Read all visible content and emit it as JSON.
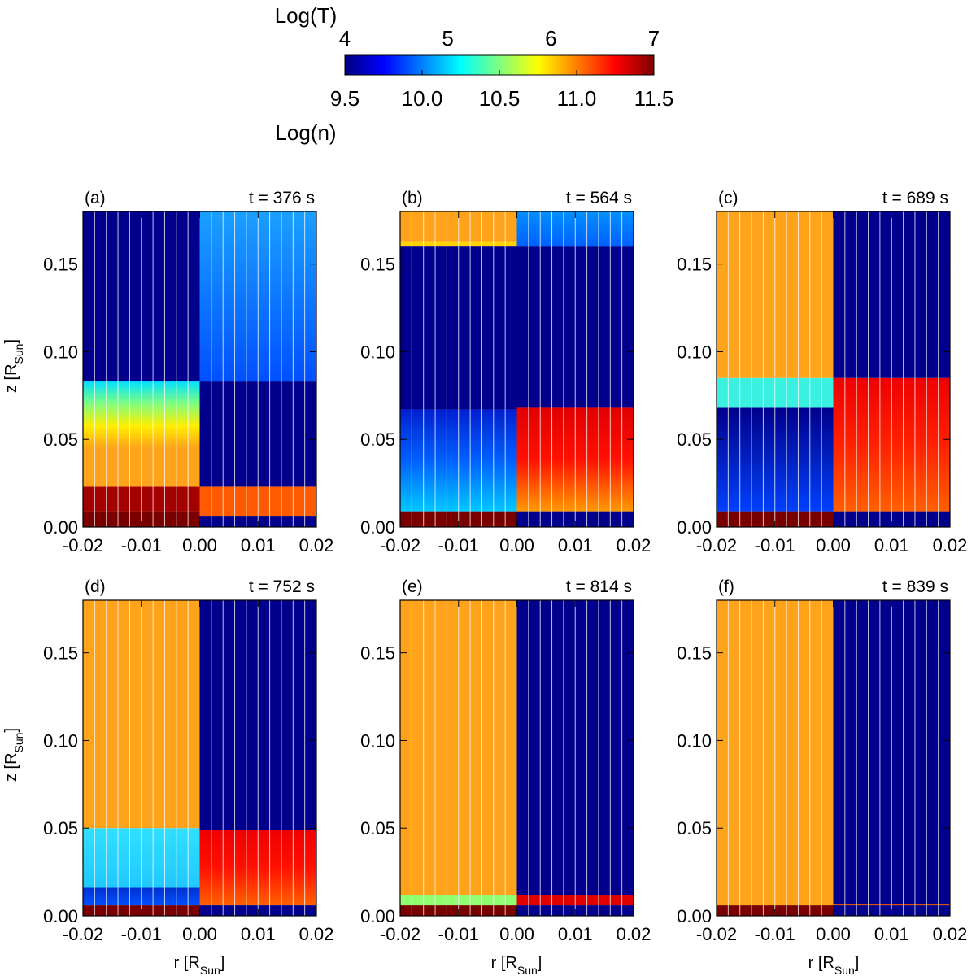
{
  "colorbar": {
    "top_title": "Log(T)",
    "top_ticks": [
      "4",
      "5",
      "6",
      "7"
    ],
    "bottom_ticks": [
      "9.5",
      "10.0",
      "10.5",
      "11.0",
      "11.5"
    ],
    "bottom_title": "Log(n)",
    "colormap": "jet",
    "stops": [
      "#00007f",
      "#0000ff",
      "#007fff",
      "#00ffff",
      "#7fff7f",
      "#ffff00",
      "#ff7f00",
      "#ff0000",
      "#7f0000"
    ]
  },
  "axes": {
    "xlabel_main": "r [R",
    "xlabel_sub": "Sun",
    "xlabel_end": "]",
    "ylabel_main": "z [R",
    "ylabel_sub": "Sun",
    "ylabel_end": "]",
    "xticks": [
      "-0.02",
      "-0.01",
      "0.00",
      "0.01",
      "0.02"
    ],
    "yticks": [
      "0.00",
      "0.05",
      "0.10",
      "0.15"
    ]
  },
  "colors": {
    "orange": "#ffa31a",
    "dark_navy": "#00008c",
    "dark_red": "#7a0000",
    "grid_white": "#ffffff"
  },
  "chart_data": [
    {
      "type": "heatmap",
      "label": "(a)",
      "time": "t = 376 s",
      "xlim": [
        -0.02,
        0.02
      ],
      "ylim": [
        0,
        0.18
      ],
      "left_T_bands": [
        {
          "z": [
            0,
            0.009
          ],
          "color": "#7a0000"
        },
        {
          "z": [
            0.009,
            0.023
          ],
          "color": "#a30000"
        },
        {
          "z": [
            0.023,
            0.045
          ],
          "color": "#ffa31a"
        },
        {
          "z": [
            0.045,
            0.083
          ],
          "gradient": [
            "#ffa31a",
            "#ffee00",
            "#7fff7f",
            "#00e0ff"
          ]
        },
        {
          "z": [
            0.083,
            0.18
          ],
          "color": "#00008c"
        }
      ],
      "right_n_bands": [
        {
          "z": [
            0,
            0.006
          ],
          "color": "#00008c"
        },
        {
          "z": [
            0.006,
            0.023
          ],
          "color": "#ff5a00"
        },
        {
          "z": [
            0.023,
            0.083
          ],
          "color": "#00008c"
        },
        {
          "z": [
            0.083,
            0.18
          ],
          "gradient": [
            "#0050ff",
            "#1aa0ff"
          ]
        }
      ]
    },
    {
      "type": "heatmap",
      "label": "(b)",
      "time": "t = 564 s",
      "xlim": [
        -0.02,
        0.02
      ],
      "ylim": [
        0,
        0.18
      ],
      "left_T_bands": [
        {
          "z": [
            0,
            0.009
          ],
          "color": "#7a0000"
        },
        {
          "z": [
            0.009,
            0.067
          ],
          "gradient": [
            "#00c8ff",
            "#0060ff",
            "#0020d0"
          ]
        },
        {
          "z": [
            0.067,
            0.16
          ],
          "color": "#00008c"
        },
        {
          "z": [
            0.16,
            0.163
          ],
          "color": "#ffd200"
        },
        {
          "z": [
            0.163,
            0.18
          ],
          "color": "#ffa31a"
        }
      ],
      "right_n_bands": [
        {
          "z": [
            0,
            0.009
          ],
          "color": "#00008c"
        },
        {
          "z": [
            0.009,
            0.068
          ],
          "gradient": [
            "#ff9a00",
            "#ff1000",
            "#e00000"
          ]
        },
        {
          "z": [
            0.068,
            0.16
          ],
          "color": "#00008c"
        },
        {
          "z": [
            0.16,
            0.18
          ],
          "gradient": [
            "#0060ff",
            "#0090ff"
          ]
        }
      ]
    },
    {
      "type": "heatmap",
      "label": "(c)",
      "time": "t = 689 s",
      "xlim": [
        -0.02,
        0.02
      ],
      "ylim": [
        0,
        0.18
      ],
      "left_T_bands": [
        {
          "z": [
            0,
            0.009
          ],
          "color": "#7a0000"
        },
        {
          "z": [
            0.009,
            0.068
          ],
          "gradient": [
            "#0040ff",
            "#0020c0",
            "#00008c"
          ]
        },
        {
          "z": [
            0.068,
            0.085
          ],
          "color": "#3af0e0"
        },
        {
          "z": [
            0.085,
            0.18
          ],
          "color": "#ffa31a"
        }
      ],
      "right_n_bands": [
        {
          "z": [
            0,
            0.009
          ],
          "color": "#00008c"
        },
        {
          "z": [
            0.009,
            0.085
          ],
          "gradient": [
            "#ff6000",
            "#ff2000",
            "#ee0000"
          ]
        },
        {
          "z": [
            0.085,
            0.18
          ],
          "color": "#00008c"
        }
      ]
    },
    {
      "type": "heatmap",
      "label": "(d)",
      "time": "t = 752 s",
      "xlim": [
        -0.02,
        0.02
      ],
      "ylim": [
        0,
        0.18
      ],
      "left_T_bands": [
        {
          "z": [
            0,
            0.006
          ],
          "color": "#7a0000"
        },
        {
          "z": [
            0.006,
            0.016
          ],
          "gradient": [
            "#0050ff",
            "#0030d0"
          ]
        },
        {
          "z": [
            0.016,
            0.05
          ],
          "gradient": [
            "#20c8ff",
            "#30e0ff"
          ]
        },
        {
          "z": [
            0.05,
            0.18
          ],
          "color": "#ffa31a"
        }
      ],
      "right_n_bands": [
        {
          "z": [
            0,
            0.006
          ],
          "color": "#00008c"
        },
        {
          "z": [
            0.006,
            0.049
          ],
          "gradient": [
            "#ff6000",
            "#ff1000",
            "#ee0000"
          ]
        },
        {
          "z": [
            0.049,
            0.18
          ],
          "color": "#00008c"
        }
      ]
    },
    {
      "type": "heatmap",
      "label": "(e)",
      "time": "t = 814 s",
      "xlim": [
        -0.02,
        0.02
      ],
      "ylim": [
        0,
        0.18
      ],
      "left_T_bands": [
        {
          "z": [
            0,
            0.006
          ],
          "color": "#7a0000"
        },
        {
          "z": [
            0.006,
            0.012
          ],
          "color": "#90ff70"
        },
        {
          "z": [
            0.012,
            0.18
          ],
          "color": "#ffa31a"
        }
      ],
      "right_n_bands": [
        {
          "z": [
            0,
            0.006
          ],
          "color": "#00008c"
        },
        {
          "z": [
            0.006,
            0.012
          ],
          "color": "#e00000"
        },
        {
          "z": [
            0.012,
            0.18
          ],
          "color": "#00008c"
        }
      ]
    },
    {
      "type": "heatmap",
      "label": "(f)",
      "time": "t = 839 s",
      "xlim": [
        -0.02,
        0.02
      ],
      "ylim": [
        0,
        0.18
      ],
      "left_T_bands": [
        {
          "z": [
            0,
            0.006
          ],
          "color": "#7a0000"
        },
        {
          "z": [
            0.006,
            0.18
          ],
          "color": "#ffa31a"
        }
      ],
      "right_n_bands": [
        {
          "z": [
            0,
            0.006
          ],
          "color": "#00008c"
        },
        {
          "z": [
            0.006,
            0.0065
          ],
          "color": "#e05000"
        },
        {
          "z": [
            0.0065,
            0.18
          ],
          "color": "#00008c"
        }
      ]
    }
  ]
}
